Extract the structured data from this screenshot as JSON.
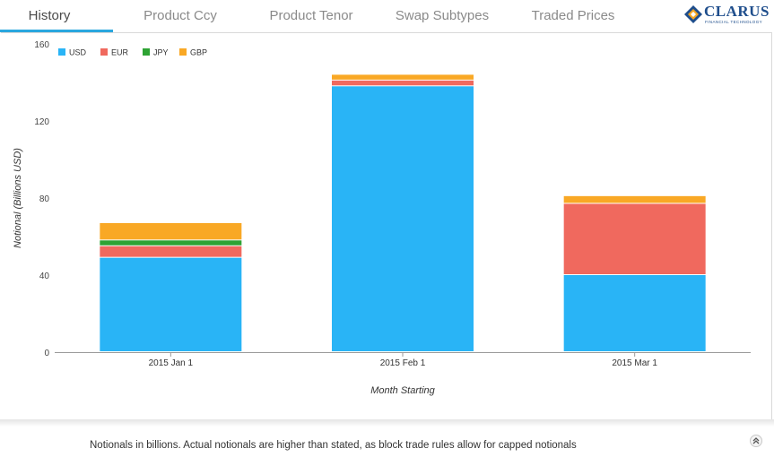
{
  "tabs": [
    {
      "label": "History",
      "active": true
    },
    {
      "label": "Product Ccy",
      "active": false
    },
    {
      "label": "Product Tenor",
      "active": false
    },
    {
      "label": "Swap Subtypes",
      "active": false
    },
    {
      "label": "Traded Prices",
      "active": false
    }
  ],
  "logo": {
    "name": "CLARUS",
    "tagline": "FINANCIAL TECHNOLOGY"
  },
  "colors": {
    "accent": "#2aa7df",
    "USD": "#29b4f6",
    "EUR": "#f0695e",
    "JPY": "#2ea334",
    "GBP": "#f9a825"
  },
  "chart_data": {
    "type": "bar",
    "stacked": true,
    "categories": [
      "2015 Jan 1",
      "2015 Feb 1",
      "2015 Mar 1"
    ],
    "series": [
      {
        "name": "USD",
        "values": [
          49,
          138,
          40
        ]
      },
      {
        "name": "EUR",
        "values": [
          6,
          3,
          37
        ]
      },
      {
        "name": "JPY",
        "values": [
          3,
          0,
          0
        ]
      },
      {
        "name": "GBP",
        "values": [
          9,
          3,
          4
        ]
      }
    ],
    "xlabel": "Month Starting",
    "ylabel": "Notional (Billions USD)",
    "ylim": [
      0,
      160
    ],
    "yticks": [
      0,
      40,
      80,
      120,
      160
    ],
    "legend_position": "top-left",
    "grid": false
  },
  "footer": {
    "note": "Notionals in billions. Actual notionals are higher than stated, as block trade rules allow for capped notionals"
  }
}
